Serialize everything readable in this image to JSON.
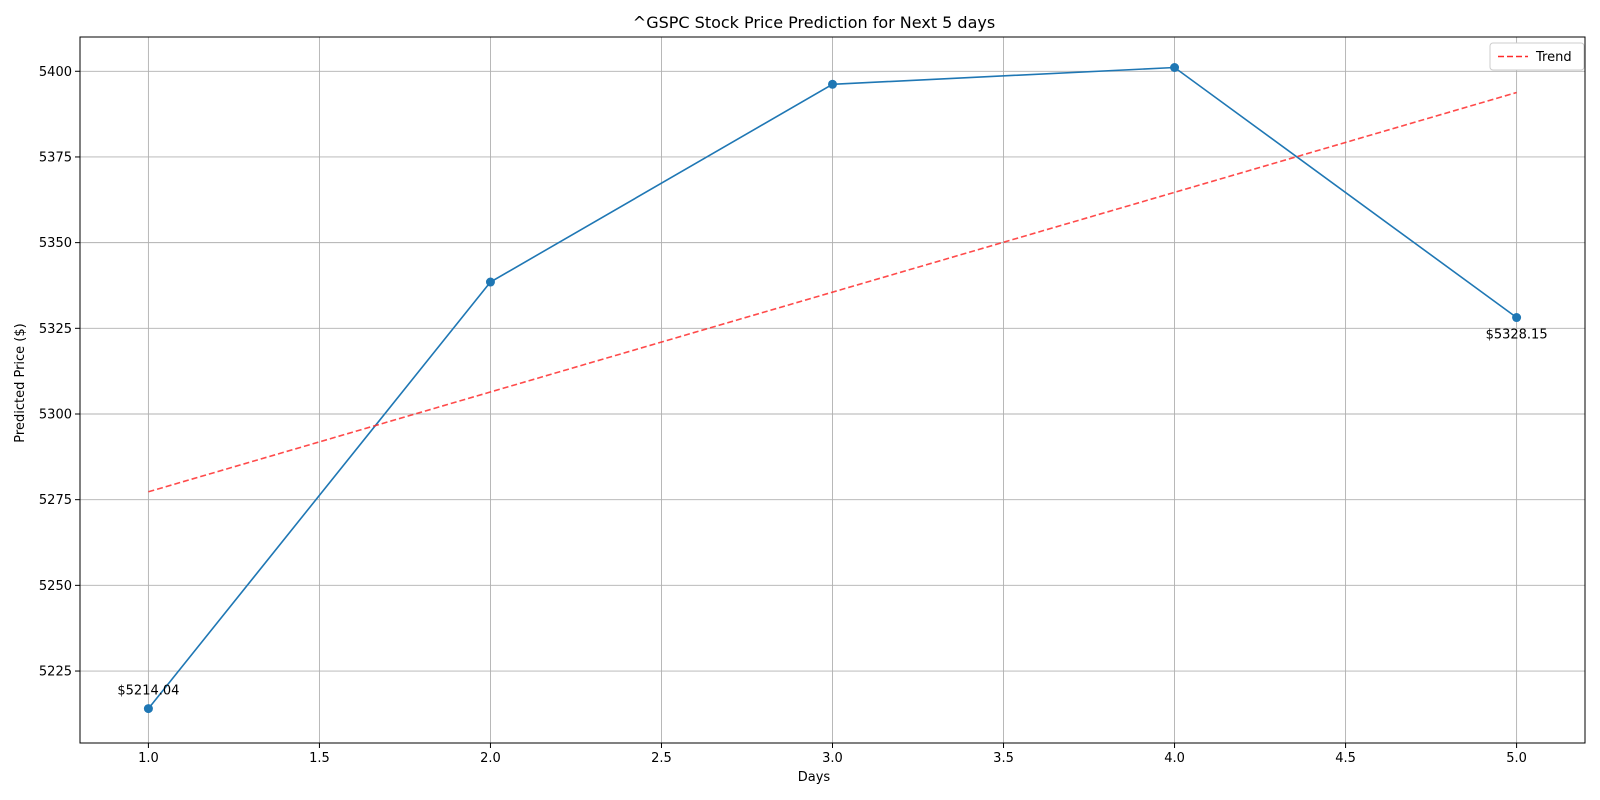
{
  "chart_data": {
    "type": "line",
    "title": "^GSPC Stock Price Prediction for Next 5 days",
    "xlabel": "Days",
    "ylabel": "Predicted Price ($)",
    "xlim": [
      0.8,
      5.2
    ],
    "ylim": [
      5204,
      5410
    ],
    "xticks": [
      1.0,
      1.5,
      2.0,
      2.5,
      3.0,
      3.5,
      4.0,
      4.5,
      5.0
    ],
    "xtick_labels": [
      "1.0",
      "1.5",
      "2.0",
      "2.5",
      "3.0",
      "3.5",
      "4.0",
      "4.5",
      "5.0"
    ],
    "yticks": [
      5225,
      5250,
      5275,
      5300,
      5325,
      5350,
      5375,
      5400
    ],
    "ytick_labels": [
      "5225",
      "5250",
      "5275",
      "5300",
      "5325",
      "5350",
      "5375",
      "5400"
    ],
    "grid": true,
    "legend": {
      "position": "top-right",
      "entries": [
        "Trend"
      ]
    },
    "series": [
      {
        "color": "#1f77b4",
        "style": "solid",
        "marker": "circle",
        "x": [
          1,
          2,
          3,
          4,
          5
        ],
        "y": [
          5214.04,
          5338.5,
          5396.2,
          5401.1,
          5328.15
        ]
      },
      {
        "name": "Trend",
        "color": "#ff2a2a",
        "style": "dashed",
        "x": [
          1,
          5
        ],
        "y": [
          5277.3,
          5393.8
        ]
      }
    ],
    "annotations": [
      {
        "x": 1,
        "y": 5214.04,
        "text": "$5214.04",
        "placement": "above"
      },
      {
        "x": 5,
        "y": 5328.15,
        "text": "$5328.15",
        "placement": "below"
      }
    ]
  }
}
